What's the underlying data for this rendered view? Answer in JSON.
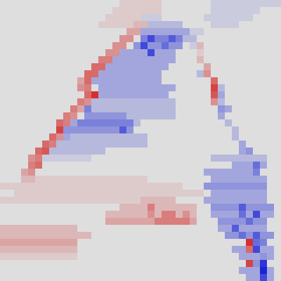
{
  "chart_data": {
    "type": "heatmap",
    "tick_labels": false,
    "zlim": [
      -10,
      10
    ],
    "cells": [
      [
        0,
        0,
        0,
        0,
        0,
        0,
        0,
        0,
        0,
        0,
        0,
        0,
        0,
        0,
        0,
        0,
        0,
        1,
        1,
        1,
        1,
        1,
        1,
        0,
        0,
        0,
        0,
        0,
        0,
        0,
        -1,
        -1,
        -1,
        -1,
        -1,
        -1,
        -1,
        -1,
        -1,
        -1
      ],
      [
        0,
        0,
        0,
        0,
        0,
        0,
        0,
        0,
        0,
        0,
        0,
        0,
        0,
        0,
        0,
        0,
        1,
        1,
        1,
        1,
        1,
        1,
        1,
        0,
        0,
        0,
        0,
        0,
        0,
        0,
        -1,
        -1,
        -1,
        -1,
        -1,
        -1,
        -1,
        0,
        0,
        0
      ],
      [
        0,
        0,
        0,
        0,
        0,
        0,
        0,
        0,
        0,
        0,
        0,
        0,
        0,
        0,
        0,
        1,
        1,
        1,
        1,
        1,
        -1,
        -1,
        -1,
        0,
        0,
        0,
        0,
        0,
        0,
        -1,
        -1,
        -1,
        -1,
        -1,
        -1,
        -1,
        0,
        0,
        0,
        0
      ],
      [
        0,
        0,
        0,
        0,
        0,
        0,
        0,
        0,
        0,
        0,
        0,
        0,
        0,
        0,
        1,
        1,
        1,
        1,
        1,
        2,
        2,
        -2,
        -2,
        -2,
        -2,
        -2,
        0,
        0,
        0,
        0,
        -1,
        -1,
        -1,
        -1,
        0,
        0,
        0,
        0,
        0,
        0
      ],
      [
        0,
        0,
        0,
        0,
        0,
        0,
        0,
        0,
        0,
        0,
        0,
        0,
        0,
        0,
        0,
        0,
        0,
        0,
        3,
        3,
        -3,
        -3,
        -3,
        -3,
        -3,
        -3,
        -3,
        -1,
        -1,
        0,
        0,
        0,
        0,
        0,
        0,
        0,
        0,
        0,
        0,
        0
      ],
      [
        0,
        0,
        0,
        0,
        0,
        0,
        0,
        0,
        0,
        0,
        0,
        0,
        0,
        0,
        0,
        0,
        0,
        4,
        4,
        0,
        -5,
        -8,
        -5,
        -5,
        -7,
        -5,
        -2,
        -2,
        0,
        0,
        0,
        0,
        0,
        0,
        0,
        0,
        0,
        0,
        0,
        0
      ],
      [
        0,
        0,
        0,
        0,
        0,
        0,
        0,
        0,
        0,
        0,
        0,
        0,
        0,
        0,
        0,
        0,
        4,
        4,
        0,
        -4,
        -8,
        -4,
        -4,
        -6,
        -4,
        -4,
        0,
        -1,
        2,
        0,
        0,
        0,
        0,
        0,
        0,
        0,
        0,
        0,
        0,
        0
      ],
      [
        0,
        0,
        0,
        0,
        0,
        0,
        0,
        0,
        0,
        0,
        0,
        0,
        0,
        0,
        0,
        4,
        4,
        -3,
        -3,
        -3,
        -3,
        -8,
        -3,
        -3,
        -3,
        0,
        0,
        0,
        1,
        0,
        0,
        0,
        0,
        0,
        0,
        0,
        0,
        0,
        0,
        0
      ],
      [
        0,
        0,
        0,
        0,
        0,
        0,
        0,
        0,
        0,
        0,
        0,
        0,
        0,
        0,
        5,
        5,
        -3,
        -3,
        -3,
        -3,
        -3,
        -3,
        -3,
        -3,
        -3,
        0,
        0,
        0,
        2,
        0,
        0,
        0,
        0,
        0,
        0,
        0,
        0,
        0,
        0,
        0
      ],
      [
        0,
        0,
        0,
        0,
        0,
        0,
        0,
        0,
        0,
        0,
        0,
        0,
        0,
        6,
        6,
        -3,
        -3,
        -3,
        -3,
        -3,
        -3,
        -3,
        -3,
        -3,
        0,
        0,
        0,
        0,
        0,
        3,
        0,
        0,
        0,
        0,
        0,
        0,
        0,
        0,
        0,
        0
      ],
      [
        0,
        0,
        0,
        0,
        0,
        0,
        0,
        0,
        0,
        0,
        0,
        0,
        6,
        6,
        -3,
        -3,
        -3,
        -3,
        -3,
        -3,
        -3,
        -3,
        -3,
        0,
        0,
        0,
        0,
        0,
        -2,
        4,
        0,
        0,
        0,
        0,
        0,
        0,
        0,
        0,
        0,
        0
      ],
      [
        0,
        0,
        0,
        0,
        0,
        0,
        0,
        0,
        0,
        0,
        0,
        3,
        6,
        -3,
        -3,
        -3,
        -3,
        -3,
        -3,
        -3,
        -3,
        -3,
        -3,
        0,
        0,
        0,
        0,
        0,
        0,
        0,
        6,
        0,
        0,
        0,
        0,
        0,
        0,
        0,
        0,
        0
      ],
      [
        0,
        0,
        0,
        0,
        0,
        0,
        0,
        0,
        0,
        0,
        0,
        4,
        5,
        0,
        -3,
        -3,
        -3,
        -3,
        -3,
        -3,
        -3,
        -3,
        -3,
        -3,
        -3,
        0,
        0,
        0,
        0,
        0,
        8,
        -2,
        0,
        0,
        0,
        0,
        0,
        0,
        0,
        0
      ],
      [
        0,
        0,
        0,
        0,
        0,
        0,
        0,
        0,
        0,
        0,
        0,
        0,
        6,
        9,
        -3,
        -3,
        -3,
        -3,
        -3,
        -3,
        -3,
        -3,
        -3,
        -3,
        0,
        0,
        0,
        0,
        0,
        0,
        7,
        -3,
        0,
        0,
        0,
        0,
        0,
        0,
        0,
        0
      ],
      [
        0,
        0,
        0,
        0,
        0,
        0,
        0,
        0,
        0,
        0,
        0,
        5,
        4,
        -2,
        -2,
        -2,
        -2,
        -2,
        -2,
        -2,
        -2,
        -2,
        -2,
        -2,
        -2,
        0,
        0,
        0,
        0,
        0,
        4,
        -2,
        0,
        0,
        0,
        0,
        0,
        0,
        0,
        0
      ],
      [
        0,
        0,
        0,
        0,
        0,
        0,
        0,
        0,
        0,
        0,
        5,
        3,
        -5,
        -2,
        -2,
        -2,
        -2,
        -2,
        -2,
        -2,
        -2,
        -2,
        -2,
        -2,
        -2,
        0,
        0,
        0,
        0,
        0,
        0,
        -4,
        -3,
        0,
        0,
        0,
        0,
        0,
        0,
        0
      ],
      [
        0,
        0,
        0,
        0,
        0,
        0,
        0,
        0,
        0,
        5,
        4,
        0,
        -4,
        -4,
        -4,
        -4,
        -4,
        -4,
        -2,
        -2,
        -2,
        -2,
        -2,
        -2,
        -2,
        0,
        0,
        0,
        0,
        0,
        0,
        -3,
        0,
        0,
        0,
        0,
        0,
        0,
        0,
        0
      ],
      [
        0,
        0,
        0,
        0,
        0,
        0,
        0,
        0,
        6,
        5,
        -3,
        -5,
        -5,
        -5,
        -5,
        -5,
        -5,
        -5,
        -5,
        -2,
        0,
        0,
        0,
        0,
        0,
        0,
        0,
        0,
        0,
        0,
        0,
        0,
        -2,
        0,
        0,
        0,
        0,
        0,
        0,
        0
      ],
      [
        0,
        0,
        0,
        0,
        0,
        0,
        0,
        0,
        8,
        -4,
        -4,
        -4,
        -4,
        -4,
        -4,
        -4,
        -4,
        -7,
        -4,
        0,
        0,
        0,
        0,
        0,
        0,
        0,
        0,
        0,
        0,
        0,
        0,
        0,
        0,
        -2,
        0,
        0,
        0,
        0,
        0,
        0
      ],
      [
        0,
        0,
        0,
        0,
        0,
        0,
        0,
        6,
        4,
        -3,
        -2,
        -2,
        -2,
        -2,
        -2,
        -2,
        -2,
        -2,
        -2,
        -2,
        -2,
        0,
        0,
        0,
        0,
        0,
        0,
        0,
        0,
        0,
        0,
        0,
        0,
        -2,
        0,
        0,
        0,
        0,
        0,
        0
      ],
      [
        0,
        0,
        0,
        0,
        0,
        0,
        6,
        5,
        -2,
        -2,
        -2,
        -2,
        -2,
        -2,
        -2,
        -2,
        -2,
        -2,
        -2,
        -2,
        -2,
        0,
        0,
        0,
        0,
        0,
        0,
        0,
        0,
        0,
        0,
        0,
        0,
        0,
        -3,
        0,
        0,
        0,
        0,
        0
      ],
      [
        0,
        0,
        0,
        0,
        0,
        6,
        7,
        -2,
        -2,
        -2,
        -2,
        -2,
        -2,
        -2,
        -2,
        0,
        0,
        0,
        0,
        0,
        0,
        0,
        0,
        0,
        0,
        0,
        0,
        0,
        0,
        0,
        0,
        0,
        0,
        0,
        -3,
        -4,
        0,
        0,
        0,
        0
      ],
      [
        0,
        0,
        0,
        0,
        4,
        5,
        -1,
        -1,
        -1,
        -1,
        -1,
        -1,
        -1,
        0,
        0,
        0,
        0,
        0,
        0,
        0,
        0,
        0,
        0,
        0,
        0,
        0,
        0,
        0,
        0,
        0,
        -2,
        -2,
        -2,
        -2,
        -2,
        -2,
        -2,
        -2,
        0,
        0
      ],
      [
        0,
        0,
        0,
        0,
        5,
        6,
        0,
        0,
        0,
        0,
        0,
        0,
        0,
        0,
        0,
        0,
        0,
        0,
        0,
        0,
        0,
        0,
        0,
        0,
        0,
        0,
        0,
        0,
        0,
        0,
        0,
        0,
        0,
        -3,
        -3,
        -3,
        -6,
        -3,
        0,
        0
      ],
      [
        0,
        0,
        0,
        3,
        4,
        0,
        0,
        0,
        0,
        0,
        0,
        0,
        0,
        0,
        0,
        0,
        0,
        0,
        0,
        0,
        0,
        0,
        0,
        0,
        0,
        0,
        0,
        0,
        0,
        -3,
        -3,
        -3,
        -3,
        -3,
        -3,
        -3,
        -5,
        0,
        0,
        0
      ],
      [
        0,
        0,
        0,
        2,
        2,
        1,
        1,
        1,
        1,
        1,
        1,
        1,
        1,
        1,
        1,
        1,
        1,
        1,
        1,
        1,
        1,
        0,
        0,
        0,
        0,
        0,
        0,
        0,
        0,
        0,
        -3,
        -3,
        -3,
        -3,
        -3,
        -3,
        -3,
        -3,
        0,
        0
      ],
      [
        1,
        1,
        1,
        1,
        1,
        1,
        1,
        1,
        1,
        1,
        1,
        1,
        1,
        1,
        1,
        1,
        1,
        1,
        1,
        1,
        1,
        1,
        1,
        1,
        1,
        1,
        0,
        0,
        0,
        -4,
        -4,
        -4,
        -4,
        -4,
        -4,
        -4,
        -4,
        -4,
        0,
        0
      ],
      [
        0,
        0,
        1,
        1,
        1,
        1,
        1,
        1,
        1,
        1,
        1,
        1,
        1,
        1,
        1,
        1,
        1,
        1,
        1,
        1,
        1,
        1,
        1,
        1,
        1,
        1,
        1,
        1,
        1,
        0,
        -3,
        -3,
        -3,
        -3,
        -3,
        -3,
        -3,
        -3,
        0,
        0
      ],
      [
        1,
        1,
        1,
        1,
        1,
        1,
        1,
        1,
        1,
        1,
        1,
        1,
        1,
        1,
        1,
        1,
        1,
        1,
        1,
        1,
        2,
        2,
        2,
        2,
        2,
        0,
        0,
        0,
        0,
        -3,
        -3,
        -3,
        -3,
        -3,
        -3,
        -3,
        -3,
        -3,
        0,
        0
      ],
      [
        0,
        0,
        0,
        0,
        0,
        0,
        0,
        0,
        0,
        0,
        0,
        0,
        0,
        0,
        0,
        0,
        0,
        2,
        2,
        2,
        2,
        5,
        2,
        2,
        2,
        2,
        2,
        2,
        0,
        0,
        -4,
        -4,
        -4,
        -4,
        -7,
        -4,
        -4,
        -4,
        -4,
        0
      ],
      [
        0,
        0,
        0,
        0,
        0,
        0,
        0,
        0,
        0,
        0,
        0,
        0,
        0,
        0,
        0,
        2,
        2,
        2,
        2,
        2,
        2,
        4,
        2,
        5,
        5,
        2,
        4,
        2,
        0,
        0,
        -3,
        -3,
        -3,
        -3,
        -6,
        -3,
        -8,
        -3,
        -3,
        0
      ],
      [
        0,
        0,
        0,
        0,
        0,
        0,
        0,
        0,
        0,
        0,
        0,
        0,
        0,
        0,
        0,
        3,
        3,
        3,
        3,
        3,
        3,
        3,
        5,
        5,
        5,
        5,
        5,
        3,
        0,
        0,
        0,
        -4,
        -4,
        -4,
        -4,
        -6,
        -4,
        -4,
        0,
        0
      ],
      [
        2,
        2,
        2,
        2,
        2,
        2,
        2,
        2,
        2,
        2,
        2,
        0,
        0,
        0,
        0,
        0,
        0,
        0,
        0,
        0,
        0,
        0,
        0,
        0,
        0,
        0,
        0,
        0,
        0,
        0,
        0,
        -3,
        -3,
        -7,
        -3,
        -3,
        -3,
        -3,
        0,
        0
      ],
      [
        2,
        2,
        2,
        2,
        2,
        2,
        2,
        2,
        2,
        2,
        2,
        2,
        2,
        0,
        0,
        0,
        0,
        0,
        0,
        0,
        0,
        0,
        0,
        0,
        0,
        0,
        0,
        0,
        0,
        0,
        0,
        0,
        -4,
        -4,
        -6,
        -4,
        -7,
        -4,
        -4,
        0
      ],
      [
        3,
        3,
        3,
        3,
        3,
        3,
        3,
        3,
        3,
        3,
        3,
        0,
        0,
        0,
        0,
        0,
        0,
        0,
        0,
        0,
        0,
        0,
        0,
        0,
        0,
        0,
        0,
        0,
        0,
        0,
        0,
        0,
        0,
        0,
        0,
        9,
        -6,
        -5,
        0,
        0
      ],
      [
        2,
        2,
        2,
        2,
        2,
        2,
        2,
        2,
        2,
        2,
        2,
        0,
        0,
        0,
        0,
        0,
        0,
        0,
        0,
        0,
        0,
        0,
        0,
        0,
        0,
        0,
        0,
        0,
        0,
        0,
        0,
        0,
        0,
        -3,
        -3,
        6,
        -8,
        -3,
        -3,
        0
      ],
      [
        1,
        1,
        1,
        1,
        1,
        1,
        1,
        1,
        1,
        1,
        1,
        0,
        0,
        0,
        0,
        0,
        0,
        0,
        0,
        0,
        0,
        0,
        0,
        0,
        0,
        0,
        0,
        0,
        0,
        0,
        0,
        0,
        0,
        0,
        -3,
        -3,
        -3,
        -4,
        -3,
        0
      ],
      [
        0,
        0,
        0,
        0,
        0,
        0,
        0,
        0,
        0,
        0,
        0,
        0,
        0,
        0,
        0,
        0,
        0,
        0,
        0,
        0,
        0,
        0,
        0,
        0,
        0,
        0,
        0,
        0,
        0,
        0,
        0,
        0,
        0,
        0,
        0,
        8,
        -4,
        -9,
        0,
        0
      ],
      [
        0,
        0,
        0,
        0,
        0,
        0,
        0,
        0,
        0,
        0,
        0,
        0,
        0,
        0,
        0,
        0,
        0,
        0,
        0,
        0,
        0,
        0,
        0,
        0,
        0,
        0,
        0,
        0,
        0,
        0,
        0,
        0,
        0,
        0,
        -3,
        -3,
        -3,
        -10,
        -3,
        0
      ],
      [
        0,
        0,
        0,
        0,
        0,
        0,
        0,
        0,
        0,
        0,
        0,
        0,
        0,
        0,
        0,
        0,
        0,
        0,
        0,
        0,
        0,
        0,
        0,
        0,
        0,
        0,
        0,
        0,
        0,
        0,
        0,
        0,
        0,
        0,
        0,
        -3,
        -3,
        -8,
        -3,
        0
      ]
    ]
  }
}
